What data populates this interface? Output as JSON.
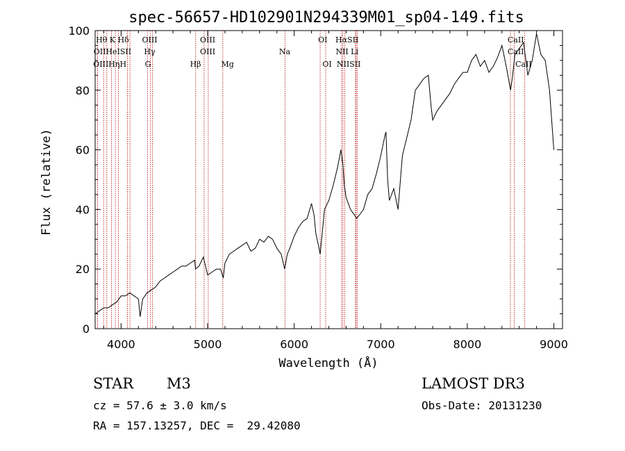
{
  "chart_data": {
    "type": "line",
    "title": "spec-56657-HD102901N294339M01_sp04-149.fits",
    "xlabel": "Wavelength (Å)",
    "ylabel": "Flux (relative)",
    "xlim": [
      3700,
      9100
    ],
    "ylim": [
      0,
      100
    ],
    "xticks": [
      4000,
      5000,
      6000,
      7000,
      8000,
      9000
    ],
    "yticks": [
      0,
      20,
      40,
      60,
      80,
      100
    ],
    "series": [
      {
        "name": "flux",
        "x": [
          3700,
          3750,
          3800,
          3850,
          3900,
          3950,
          4000,
          4050,
          4100,
          4150,
          4200,
          4220,
          4250,
          4300,
          4350,
          4400,
          4450,
          4500,
          4550,
          4600,
          4650,
          4700,
          4750,
          4800,
          4850,
          4860,
          4900,
          4950,
          5000,
          5050,
          5100,
          5150,
          5180,
          5200,
          5250,
          5300,
          5350,
          5400,
          5450,
          5500,
          5550,
          5600,
          5650,
          5700,
          5750,
          5800,
          5850,
          5890,
          5920,
          5950,
          6000,
          6050,
          6100,
          6150,
          6200,
          6230,
          6250,
          6280,
          6300,
          6350,
          6400,
          6450,
          6500,
          6540,
          6563,
          6580,
          6600,
          6650,
          6700,
          6720,
          6750,
          6800,
          6850,
          6900,
          6950,
          7000,
          7050,
          7060,
          7080,
          7100,
          7150,
          7200,
          7250,
          7300,
          7350,
          7400,
          7450,
          7500,
          7550,
          7580,
          7600,
          7650,
          7700,
          7750,
          7800,
          7850,
          7900,
          7950,
          8000,
          8050,
          8100,
          8150,
          8200,
          8250,
          8300,
          8350,
          8400,
          8450,
          8500,
          8520,
          8550,
          8600,
          8650,
          8700,
          8750,
          8800,
          8850,
          8900,
          8950,
          9000
        ],
        "values": [
          5,
          6,
          7,
          7,
          8,
          9,
          11,
          11,
          12,
          11,
          10,
          4,
          10,
          12,
          13,
          14,
          16,
          17,
          18,
          19,
          20,
          21,
          21,
          22,
          23,
          20,
          21,
          24,
          18,
          19,
          20,
          20,
          17,
          22,
          25,
          26,
          27,
          28,
          29,
          26,
          27,
          30,
          29,
          31,
          30,
          27,
          25,
          20,
          25,
          27,
          31,
          34,
          36,
          37,
          42,
          38,
          32,
          28,
          25,
          40,
          43,
          48,
          54,
          60,
          55,
          48,
          44,
          40,
          38,
          37,
          38,
          40,
          45,
          47,
          52,
          58,
          65,
          66,
          50,
          43,
          47,
          40,
          58,
          64,
          70,
          80,
          82,
          84,
          85,
          75,
          70,
          73,
          75,
          77,
          79,
          82,
          84,
          86,
          86,
          90,
          92,
          88,
          90,
          86,
          88,
          91,
          95,
          88,
          80,
          84,
          92,
          94,
          96,
          85,
          90,
          99,
          92,
          90,
          80,
          60
        ]
      }
    ],
    "spectral_lines": [
      {
        "label": "Hθ",
        "wavelength": 3798
      },
      {
        "label": "OII",
        "wavelength": 3727
      },
      {
        "label": "OIII",
        "wavelength": 3727
      },
      {
        "label": "HeI",
        "wavelength": 3889
      },
      {
        "label": "Hη",
        "wavelength": 3835
      },
      {
        "label": "K",
        "wavelength": 3934
      },
      {
        "label": "H",
        "wavelength": 3969
      },
      {
        "label": "SII",
        "wavelength": 4072
      },
      {
        "label": "Hδ",
        "wavelength": 4102
      },
      {
        "label": "OIII",
        "wavelength": 4363
      },
      {
        "label": "Hγ",
        "wavelength": 4340
      },
      {
        "label": "G",
        "wavelength": 4305
      },
      {
        "label": "Hβ",
        "wavelength": 4861
      },
      {
        "label": "OIII",
        "wavelength": 4959
      },
      {
        "label": "OIII",
        "wavelength": 5007
      },
      {
        "label": "Mg",
        "wavelength": 5175
      },
      {
        "label": "Na",
        "wavelength": 5893
      },
      {
        "label": "OI",
        "wavelength": 6300
      },
      {
        "label": "OI",
        "wavelength": 6364
      },
      {
        "label": "Hα",
        "wavelength": 6563
      },
      {
        "label": "NII",
        "wavelength": 6548
      },
      {
        "label": "NII",
        "wavelength": 6583
      },
      {
        "label": "SII",
        "wavelength": 6716
      },
      {
        "label": "Li",
        "wavelength": 6708
      },
      {
        "label": "SII",
        "wavelength": 6731
      },
      {
        "label": "CaII",
        "wavelength": 8498
      },
      {
        "label": "CaII",
        "wavelength": 8542
      },
      {
        "label": "CaII",
        "wavelength": 8662
      }
    ],
    "label_rows": [
      [
        "Hθ K Hδ",
        "OIII",
        "OIII",
        "OI",
        "HαSII",
        "CaII"
      ],
      [
        "OIIHeISII",
        "Hγ",
        "OIII",
        "Na",
        "NII Li",
        "CaII"
      ],
      [
        "OIIIHηH",
        "G",
        "Hβ",
        "Mg",
        "OI",
        "NIISII",
        "CaII"
      ]
    ]
  },
  "info": {
    "object_type": "STAR",
    "subclass": "M3",
    "survey": "LAMOST DR3",
    "cz": "cz = 57.6 ± 3.0 km/s",
    "obs_date": "Obs-Date: 20131230",
    "coords": "RA = 157.13257, DEC =  29.42080"
  },
  "colors": {
    "line": "#000000",
    "marker": "#b00000"
  }
}
